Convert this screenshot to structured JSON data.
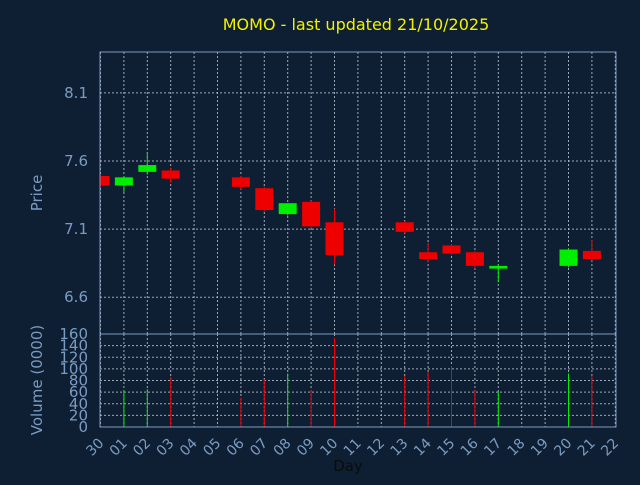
{
  "colors": {
    "background": "#0f1f33",
    "up": "#00ee00",
    "down": "#ee0000",
    "grid": "#b8c2cc",
    "axis": "#7a9cc2",
    "title": "#f2f200"
  },
  "chart_data": {
    "type": "candlestick",
    "title": "MOMO - last updated 21/10/2025",
    "xlabel": "Day",
    "price_ylabel": "Price",
    "volume_ylabel": "Volume (0000)",
    "x_ticks": [
      "30",
      "01",
      "02",
      "03",
      "04",
      "05",
      "06",
      "07",
      "08",
      "09",
      "10",
      "11",
      "12",
      "13",
      "14",
      "15",
      "16",
      "17",
      "18",
      "19",
      "20",
      "21",
      "22"
    ],
    "price_ticks": [
      "6.6",
      "7.1",
      "7.6",
      "8.1"
    ],
    "price_ylim": [
      6.33,
      8.4
    ],
    "volume_ticks": [
      "0",
      "20",
      "40",
      "60",
      "80",
      "100",
      "120",
      "140",
      "160"
    ],
    "volume_ylim": [
      0,
      160
    ],
    "grid": true,
    "candles": [
      {
        "day": "30",
        "open": 7.49,
        "close": 7.42,
        "high": 7.5,
        "low": 7.41,
        "volume": 0
      },
      {
        "day": "01",
        "open": 7.42,
        "close": 7.48,
        "high": 7.49,
        "low": 7.37,
        "volume": 63
      },
      {
        "day": "02",
        "open": 7.52,
        "close": 7.57,
        "high": 7.66,
        "low": 7.5,
        "volume": 65
      },
      {
        "day": "03",
        "open": 7.53,
        "close": 7.47,
        "high": 7.55,
        "low": 7.44,
        "volume": 86
      },
      {
        "day": "06",
        "open": 7.48,
        "close": 7.41,
        "high": 7.49,
        "low": 7.39,
        "volume": 50
      },
      {
        "day": "07",
        "open": 7.4,
        "close": 7.24,
        "high": 7.41,
        "low": 7.23,
        "volume": 82
      },
      {
        "day": "08",
        "open": 7.21,
        "close": 7.29,
        "high": 7.29,
        "low": 7.2,
        "volume": 92
      },
      {
        "day": "09",
        "open": 7.3,
        "close": 7.12,
        "high": 7.31,
        "low": 7.11,
        "volume": 64
      },
      {
        "day": "10",
        "open": 7.15,
        "close": 6.91,
        "high": 7.25,
        "low": 6.84,
        "volume": 153
      },
      {
        "day": "13",
        "open": 7.15,
        "close": 7.08,
        "high": 7.16,
        "low": 7.07,
        "volume": 88
      },
      {
        "day": "14",
        "open": 6.93,
        "close": 6.88,
        "high": 7.0,
        "low": 6.86,
        "volume": 95
      },
      {
        "day": "15",
        "open": 6.98,
        "close": 6.92,
        "high": 6.99,
        "low": 6.91,
        "volume": 105
      },
      {
        "day": "16",
        "open": 6.93,
        "close": 6.83,
        "high": 6.94,
        "low": 6.81,
        "volume": 63
      },
      {
        "day": "17",
        "open": 6.81,
        "close": 6.83,
        "high": 6.84,
        "low": 6.71,
        "volume": 62
      },
      {
        "day": "20",
        "open": 6.83,
        "close": 6.95,
        "high": 6.96,
        "low": 6.82,
        "volume": 92
      },
      {
        "day": "21",
        "open": 6.94,
        "close": 6.88,
        "high": 7.02,
        "low": 6.87,
        "volume": 88
      }
    ]
  }
}
